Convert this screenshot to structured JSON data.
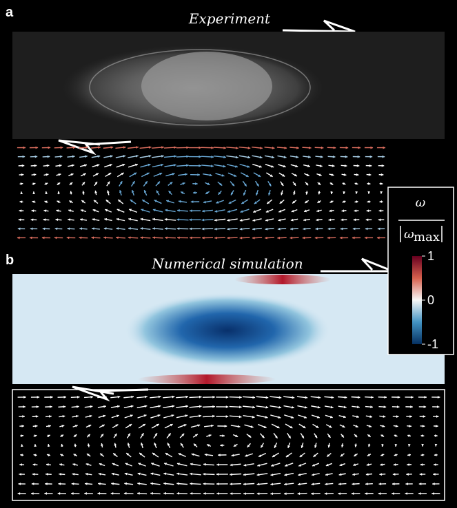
{
  "panels": [
    {
      "label": "a",
      "title": "Experiment"
    },
    {
      "label": "b",
      "title": "Numerical simulation"
    }
  ],
  "colorbar": {
    "numerator": "ω",
    "denominator_symbol": "ω",
    "denominator_subscript": "max",
    "ticks": [
      1,
      0,
      -1
    ],
    "range": [
      -1,
      1
    ]
  }
}
